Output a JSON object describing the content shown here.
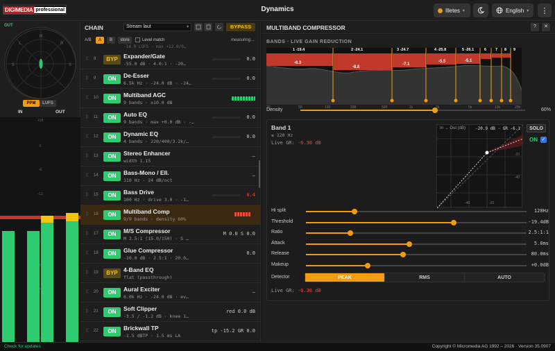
{
  "header": {
    "logo_red": "DIGIMEDIA",
    "logo_white": "professional",
    "title": "Dynamics",
    "preset": "Illetes",
    "language": "English"
  },
  "left": {
    "out_label": "OUT",
    "ppm_label": "PPM",
    "lufs_label": "LUFS",
    "in_label": "IN",
    "out_meter_label": "OUT",
    "scale": [
      "+18",
      "0",
      "-6",
      "-12",
      "-18",
      "-24",
      "-36",
      "-48",
      "-60"
    ]
  },
  "chain": {
    "title": "CHAIN",
    "preset_select": "Stream laut",
    "bypass_label": "BYPASS",
    "ab_label": "A/B",
    "a_label": "A",
    "b_label": "B",
    "store_label": "store",
    "level_match_label": "Level match",
    "measuring": "measuring…",
    "top_partial": "-14.0 LUFS · max +12.0/0…",
    "items": [
      {
        "num": "8",
        "state": "BYP",
        "name": "Expander/Gate",
        "sub": "-55.0 dB · 4.0:1 · -20…",
        "right": "0.0"
      },
      {
        "num": "9",
        "state": "ON",
        "name": "De-Esser",
        "sub": "6.5k Hz · -24.0 dB · -24…",
        "right": "0.0"
      },
      {
        "num": "10",
        "state": "ON",
        "name": "Multiband AGC",
        "sub": "9 bands · ±10.0 dB",
        "right": ""
      },
      {
        "num": "11",
        "state": "ON",
        "name": "Auto EQ",
        "sub": "9 bands · max +0.0 dB · -…",
        "right": "0.0"
      },
      {
        "num": "12",
        "state": "ON",
        "name": "Dynamic EQ",
        "sub": "4 bands · 220/400/3.2k/…",
        "right": "0.0"
      },
      {
        "num": "13",
        "state": "ON",
        "name": "Stereo Enhancer",
        "sub": "width 1.15",
        "right": "–"
      },
      {
        "num": "14",
        "state": "ON",
        "name": "Bass-Mono / Ell.",
        "sub": "110 Hz · 24 dB/oct",
        "right": "–"
      },
      {
        "num": "15",
        "state": "ON",
        "name": "Bass Drive",
        "sub": "100 Hz · drive 3.0 · -1…",
        "right": "0.4"
      },
      {
        "num": "16",
        "state": "ON",
        "name": "Multiband Comp",
        "sub": "9/9 bands · density 60%",
        "right": ""
      },
      {
        "num": "17",
        "state": "ON",
        "name": "M/S Compressor",
        "sub": "M 2.5:1 (15.0/150) · S …",
        "right": "M 0.0 S 0.0"
      },
      {
        "num": "18",
        "state": "ON",
        "name": "Glue Compressor",
        "sub": "-10.0 dB · 2.5:1 · 20.0…",
        "right": "0.0"
      },
      {
        "num": "19",
        "state": "BYP",
        "name": "4-Band EQ",
        "sub": "flat (passthrough)",
        "right": ""
      },
      {
        "num": "20",
        "state": "ON",
        "name": "Aural Exciter",
        "sub": "6.0k Hz · -24.0 dB · ev…",
        "right": "–"
      },
      {
        "num": "21",
        "state": "ON",
        "name": "Soft Clipper",
        "sub": "-3.5 / -1.2 dB · knee 1…",
        "right": "red 0.0 dB"
      },
      {
        "num": "22",
        "state": "ON",
        "name": "Brickwall TP",
        "sub": "-1.5 dBTP · 1.5 ms LA",
        "right": "tp -15.2 GR 0.0"
      }
    ]
  },
  "panel": {
    "title": "MULTIBAND COMPRESSOR",
    "help": "?",
    "close": "✕",
    "bands_heading": "BANDS · LIVE GAIN REDUCTION",
    "band_labels": [
      "1  -19.4",
      "2  -24.1",
      "3  -24.7",
      "4  -25.8",
      "5  -26.1",
      "6",
      "7",
      "8",
      "9"
    ],
    "band_gr": [
      "-6.3",
      "-8.8",
      "-7.1",
      "-5.5",
      "-5.1"
    ],
    "freq_ticks": [
      "20",
      "50",
      "100",
      "200",
      "500",
      "1k",
      "2k",
      "5k",
      "10k",
      "20k"
    ],
    "density_label": "Density",
    "density_value": "60%",
    "density": 0.6,
    "band_title": "Band 1",
    "band_range": "≤ 120 Hz",
    "live_gr_label": "Live GR:",
    "live_gr_value": "-6.30 dB",
    "curve_legend": "In → Out (dB)",
    "curve_stats": "-20.9 dB · GR -6.1",
    "curve_axis": [
      "-20",
      "-40",
      "-60",
      "-40",
      "-20"
    ],
    "solo": "SOLO",
    "on_label": "ON",
    "params": [
      {
        "label": "Hi split",
        "value": "120Hz",
        "pos": 0.22
      },
      {
        "label": "Threshold",
        "value": "-19.4dB",
        "pos": 0.67
      },
      {
        "label": "Ratio",
        "value": "2.5:1:1",
        "pos": 0.2
      },
      {
        "label": "Attack",
        "value": "5.0ms",
        "pos": 0.47
      },
      {
        "label": "Release",
        "value": "80.0ms",
        "pos": 0.44
      },
      {
        "label": "Makeup",
        "value": "+0.0dB",
        "pos": 0.28
      }
    ],
    "detector_label": "Detector",
    "detector": [
      "PEAK",
      "RMS",
      "AUTO"
    ],
    "live_gr_label2": "Live GR:",
    "live_gr_value2": "-6.30 dB"
  },
  "footer": {
    "left": "Check for updates",
    "right": "Copyright © Micromedia AG 1992 – 2026 · Version 35.0907"
  }
}
